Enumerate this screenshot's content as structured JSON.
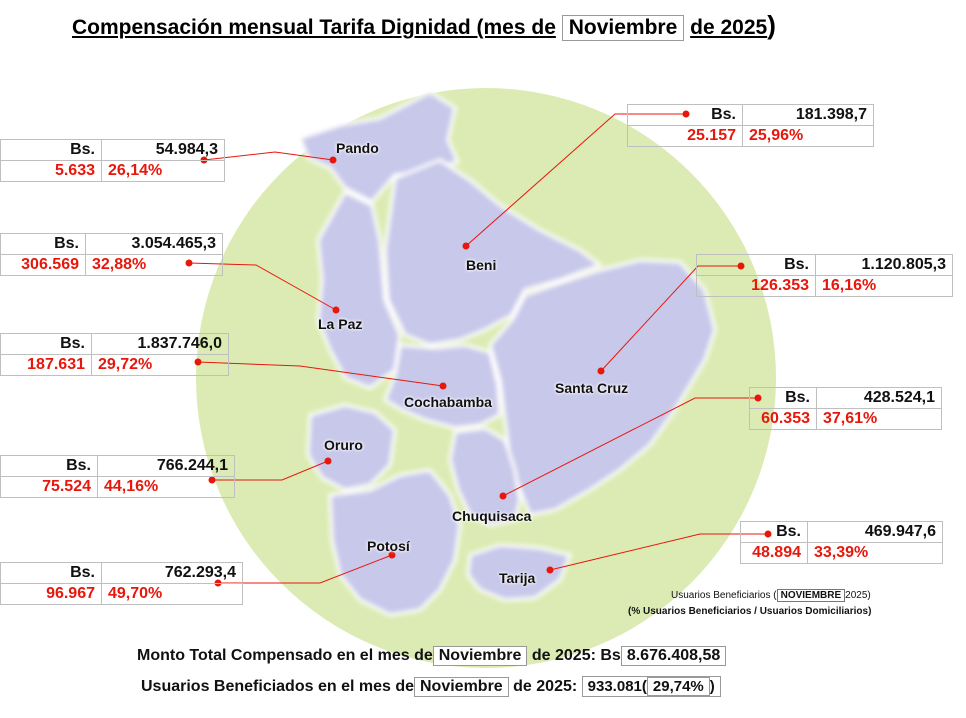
{
  "title": {
    "prefix": "Compensación mensual Tarifa Dignidad (mes de",
    "month": "Noviembre",
    "suffix": "de 2025",
    "paren": ")"
  },
  "departments": {
    "pando": {
      "name": "Pando",
      "amount": "54.984,3",
      "users": "5.633",
      "pct": "26,14%"
    },
    "beni": {
      "name": "Beni",
      "amount": "181.398,7",
      "users": "25.157",
      "pct": "25,96%"
    },
    "la_paz": {
      "name": "La Paz",
      "amount": "3.054.465,3",
      "users": "306.569",
      "pct": "32,88%"
    },
    "santa_cruz": {
      "name": "Santa Cruz",
      "amount": "1.120.805,3",
      "users": "126.353",
      "pct": "16,16%"
    },
    "cochabamba": {
      "name": "Cochabamba",
      "amount": "1.837.746,0",
      "users": "187.631",
      "pct": "29,72%"
    },
    "chuquisaca": {
      "name": "Chuquisaca",
      "amount": "428.524,1",
      "users": "60.353",
      "pct": "37,61%"
    },
    "oruro": {
      "name": "Oruro",
      "amount": "766.244,1",
      "users": "75.524",
      "pct": "44,16%"
    },
    "tarija": {
      "name": "Tarija",
      "amount": "469.947,6",
      "users": "48.894",
      "pct": "33,39%"
    },
    "potosi": {
      "name": "Potosí",
      "amount": "762.293,4",
      "users": "96.967",
      "pct": "49,70%"
    }
  },
  "currency": "Bs.",
  "legend": {
    "line1_prefix": "Usuarios Beneficiarios (",
    "month": "NOVIEMBRE",
    "line1_suffix": "2025)",
    "line2": "(% Usuarios Beneficiarios / Usuarios Domiciliarios)"
  },
  "totals": {
    "amount_label_prefix": "Monto Total Compensado en el mes de",
    "amount_month": "Noviembre",
    "amount_label_suffix": "de 2025: Bs",
    "amount_value": "8.676.408,58",
    "users_label_prefix": "Usuarios Beneficiados en el mes de",
    "users_month": "Noviembre",
    "users_label_suffix": "de 2025:",
    "users_value": "933.081",
    "users_open": "(",
    "users_pct": "29,74%",
    "users_close": ")"
  },
  "colors": {
    "circle": "#dcebb4",
    "map": "#c9c9ea",
    "leader": "#e8170c",
    "value_red": "#e8170c"
  }
}
